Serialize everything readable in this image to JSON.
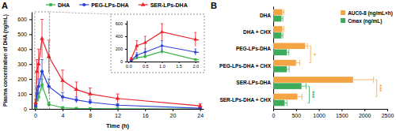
{
  "chart_data": [
    {
      "type": "line",
      "title": "A",
      "x_label": "Time (h)",
      "y_label": "Plasma concentration of DHA (ng/mL)",
      "x": [
        0.083,
        0.25,
        0.5,
        1,
        2,
        4,
        6,
        8,
        12,
        24
      ],
      "series": [
        {
          "name": "DHA",
          "color": "#3cb44b",
          "marker": "square",
          "values": [
            10,
            60,
            80,
            160,
            30,
            8,
            3,
            2,
            1,
            0
          ],
          "errors": [
            5,
            20,
            30,
            40,
            15,
            5,
            2,
            2,
            1,
            0
          ]
        },
        {
          "name": "PEG-LPs-DHA",
          "color": "#2f3fd6",
          "marker": "circle",
          "values": [
            20,
            100,
            150,
            250,
            150,
            80,
            60,
            45,
            25,
            5
          ],
          "errors": [
            10,
            40,
            50,
            80,
            50,
            30,
            20,
            15,
            10,
            5
          ]
        },
        {
          "name": "SER-LPs-DHA",
          "color": "#e8202a",
          "marker": "triangle",
          "values": [
            40,
            250,
            300,
            470,
            350,
            190,
            130,
            100,
            70,
            20
          ],
          "errors": [
            20,
            80,
            100,
            130,
            110,
            70,
            50,
            40,
            30,
            15
          ]
        }
      ],
      "xlim": [
        -0.5,
        24.5
      ],
      "xticks": [
        0,
        4,
        8,
        12,
        16,
        20,
        24
      ],
      "ylim": [
        0,
        650
      ],
      "yticks": [
        0,
        100,
        200,
        300,
        400,
        500,
        600
      ],
      "legend": "top",
      "inset": {
        "xlim": [
          -0.05,
          2.1
        ],
        "xticks": [
          {
            "value": 0,
            "label": "0.0"
          },
          {
            "value": 0.5,
            "label": "0.5"
          },
          {
            "value": 1,
            "label": "1.0"
          },
          {
            "value": 1.5,
            "label": "1.5"
          },
          {
            "value": 2,
            "label": "2.0"
          }
        ],
        "ylim": [
          0,
          650
        ],
        "yticks": [
          0,
          200,
          400,
          600
        ]
      }
    },
    {
      "type": "bar",
      "title": "B",
      "orientation": "horizontal",
      "categories": [
        "DHA",
        "DHA + CHX",
        "PEG-LPs-DHA",
        "PEG-LPs-DHA + CHX",
        "SER-LPs-DHA",
        "SER-LPs-DHA + CHX"
      ],
      "series": [
        {
          "name": "AUC0-8 (ng/mL×h)",
          "color": "#f5a443",
          "values": [
            200,
            200,
            700,
            500,
            1750,
            530
          ],
          "errors": [
            30,
            30,
            50,
            80,
            450,
            100
          ]
        },
        {
          "name": "Cmax (ng/mL)",
          "color": "#3dab5c",
          "values": [
            180,
            180,
            300,
            300,
            620,
            250
          ],
          "errors": [
            30,
            30,
            40,
            50,
            100,
            50
          ]
        }
      ],
      "xlim": [
        0,
        2500
      ],
      "xticks": [
        0,
        500,
        1000,
        1500,
        2000,
        2500
      ],
      "legend": "top-right",
      "annotations": [
        {
          "text": "*",
          "series": "AUC0-8 (ng/mL×h)",
          "between": [
            "PEG-LPs-DHA",
            "PEG-LPs-DHA + CHX"
          ]
        },
        {
          "text": "***",
          "series": "Cmax (ng/mL)",
          "between": [
            "SER-LPs-DHA",
            "SER-LPs-DHA + CHX"
          ]
        },
        {
          "text": "***",
          "series": "AUC0-8 (ng/mL×h)",
          "between": [
            "SER-LPs-DHA",
            "SER-LPs-DHA + CHX"
          ]
        }
      ]
    }
  ]
}
